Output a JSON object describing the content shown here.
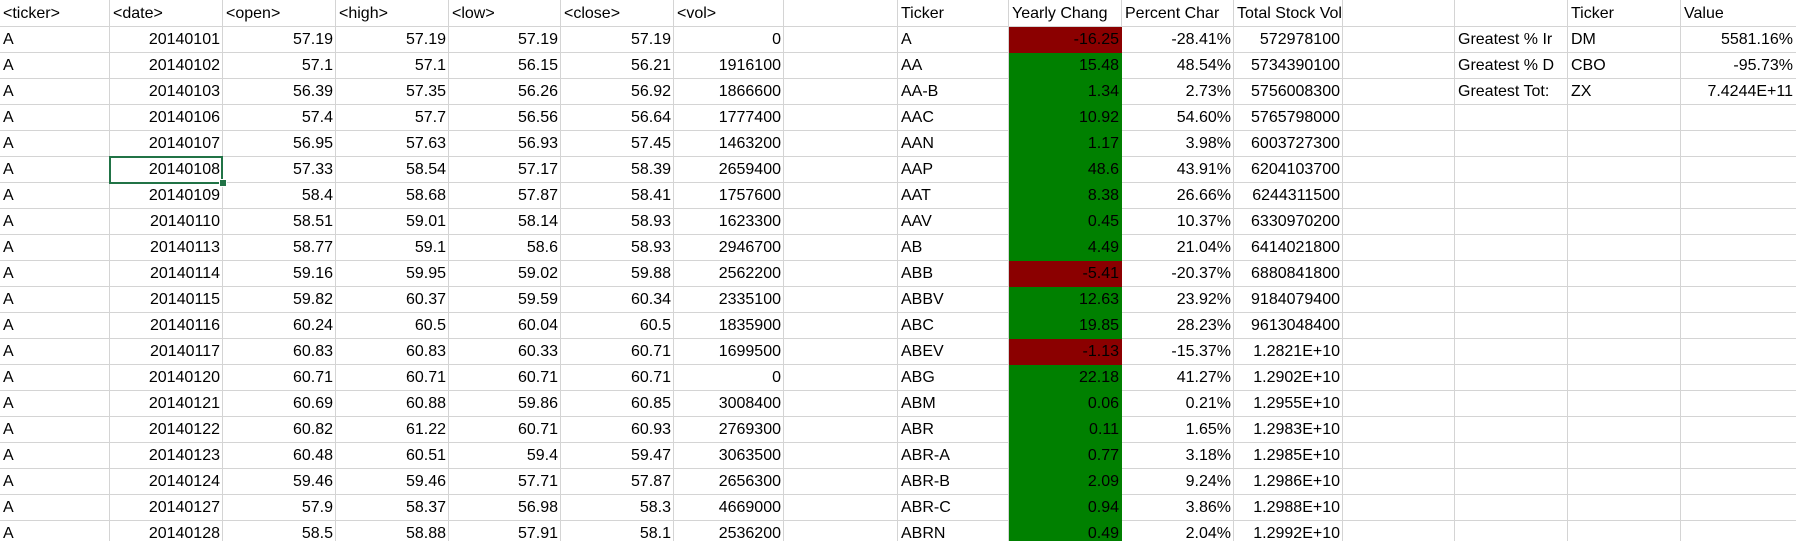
{
  "colors": {
    "positive_fill": "#008000",
    "negative_fill": "#8b0000",
    "selection_border": "#217346",
    "gridline": "#d4d4d4"
  },
  "headers": {
    "A": "<ticker>",
    "B": "<date>",
    "C": "<open>",
    "D": "<high>",
    "E": "<low>",
    "F": "<close>",
    "G": "<vol>",
    "I": "Ticker",
    "J": "Yearly Chang",
    "K": "Percent Char",
    "L": "Total Stock Volume",
    "O": "Ticker",
    "P": "Value"
  },
  "raw_rows": [
    [
      "A",
      "20140101",
      "57.19",
      "57.19",
      "57.19",
      "57.19",
      "0"
    ],
    [
      "A",
      "20140102",
      "57.1",
      "57.1",
      "56.15",
      "56.21",
      "1916100"
    ],
    [
      "A",
      "20140103",
      "56.39",
      "57.35",
      "56.26",
      "56.92",
      "1866600"
    ],
    [
      "A",
      "20140106",
      "57.4",
      "57.7",
      "56.56",
      "56.64",
      "1777400"
    ],
    [
      "A",
      "20140107",
      "56.95",
      "57.63",
      "56.93",
      "57.45",
      "1463200"
    ],
    [
      "A",
      "20140108",
      "57.33",
      "58.54",
      "57.17",
      "58.39",
      "2659400"
    ],
    [
      "A",
      "20140109",
      "58.4",
      "58.68",
      "57.87",
      "58.41",
      "1757600"
    ],
    [
      "A",
      "20140110",
      "58.51",
      "59.01",
      "58.14",
      "58.93",
      "1623300"
    ],
    [
      "A",
      "20140113",
      "58.77",
      "59.1",
      "58.6",
      "58.93",
      "2946700"
    ],
    [
      "A",
      "20140114",
      "59.16",
      "59.95",
      "59.02",
      "59.88",
      "2562200"
    ],
    [
      "A",
      "20140115",
      "59.82",
      "60.37",
      "59.59",
      "60.34",
      "2335100"
    ],
    [
      "A",
      "20140116",
      "60.24",
      "60.5",
      "60.04",
      "60.5",
      "1835900"
    ],
    [
      "A",
      "20140117",
      "60.83",
      "60.83",
      "60.33",
      "60.71",
      "1699500"
    ],
    [
      "A",
      "20140120",
      "60.71",
      "60.71",
      "60.71",
      "60.71",
      "0"
    ],
    [
      "A",
      "20140121",
      "60.69",
      "60.88",
      "59.86",
      "60.85",
      "3008400"
    ],
    [
      "A",
      "20140122",
      "60.82",
      "61.22",
      "60.71",
      "60.93",
      "2769300"
    ],
    [
      "A",
      "20140123",
      "60.48",
      "60.51",
      "59.4",
      "59.47",
      "3063500"
    ],
    [
      "A",
      "20140124",
      "59.46",
      "59.46",
      "57.71",
      "57.87",
      "2656300"
    ],
    [
      "A",
      "20140127",
      "57.9",
      "58.37",
      "56.98",
      "58.3",
      "4669000"
    ],
    [
      "A",
      "20140128",
      "58.5",
      "58.88",
      "57.91",
      "58.1",
      "2536200"
    ]
  ],
  "summary_rows": [
    {
      "ticker": "A",
      "change": "-16.25",
      "percent": "-28.41%",
      "volume": "572978100",
      "sign": "negative"
    },
    {
      "ticker": "AA",
      "change": "15.48",
      "percent": "48.54%",
      "volume": "5734390100",
      "sign": "positive"
    },
    {
      "ticker": "AA-B",
      "change": "1.34",
      "percent": "2.73%",
      "volume": "5756008300",
      "sign": "positive"
    },
    {
      "ticker": "AAC",
      "change": "10.92",
      "percent": "54.60%",
      "volume": "5765798000",
      "sign": "positive"
    },
    {
      "ticker": "AAN",
      "change": "1.17",
      "percent": "3.98%",
      "volume": "6003727300",
      "sign": "positive"
    },
    {
      "ticker": "AAP",
      "change": "48.6",
      "percent": "43.91%",
      "volume": "6204103700",
      "sign": "positive"
    },
    {
      "ticker": "AAT",
      "change": "8.38",
      "percent": "26.66%",
      "volume": "6244311500",
      "sign": "positive"
    },
    {
      "ticker": "AAV",
      "change": "0.45",
      "percent": "10.37%",
      "volume": "6330970200",
      "sign": "positive"
    },
    {
      "ticker": "AB",
      "change": "4.49",
      "percent": "21.04%",
      "volume": "6414021800",
      "sign": "positive"
    },
    {
      "ticker": "ABB",
      "change": "-5.41",
      "percent": "-20.37%",
      "volume": "6880841800",
      "sign": "negative"
    },
    {
      "ticker": "ABBV",
      "change": "12.63",
      "percent": "23.92%",
      "volume": "9184079400",
      "sign": "positive"
    },
    {
      "ticker": "ABC",
      "change": "19.85",
      "percent": "28.23%",
      "volume": "9613048400",
      "sign": "positive"
    },
    {
      "ticker": "ABEV",
      "change": "-1.13",
      "percent": "-15.37%",
      "volume": "1.2821E+10",
      "sign": "negative"
    },
    {
      "ticker": "ABG",
      "change": "22.18",
      "percent": "41.27%",
      "volume": "1.2902E+10",
      "sign": "positive"
    },
    {
      "ticker": "ABM",
      "change": "0.06",
      "percent": "0.21%",
      "volume": "1.2955E+10",
      "sign": "positive"
    },
    {
      "ticker": "ABR",
      "change": "0.11",
      "percent": "1.65%",
      "volume": "1.2983E+10",
      "sign": "positive"
    },
    {
      "ticker": "ABR-A",
      "change": "0.77",
      "percent": "3.18%",
      "volume": "1.2985E+10",
      "sign": "positive"
    },
    {
      "ticker": "ABR-B",
      "change": "2.09",
      "percent": "9.24%",
      "volume": "1.2986E+10",
      "sign": "positive"
    },
    {
      "ticker": "ABR-C",
      "change": "0.94",
      "percent": "3.86%",
      "volume": "1.2988E+10",
      "sign": "positive"
    },
    {
      "ticker": "ABRN",
      "change": "0.49",
      "percent": "2.04%",
      "volume": "1.2992E+10",
      "sign": "positive"
    }
  ],
  "greatest": [
    {
      "label": "Greatest % Ir",
      "ticker": "DM",
      "value": "5581.16%"
    },
    {
      "label": "Greatest % D",
      "ticker": "CBO",
      "value": "-95.73%"
    },
    {
      "label": "Greatest Tot:",
      "ticker": "ZX",
      "value": "7.4244E+11"
    }
  ],
  "selection": {
    "row": 6,
    "column": "B"
  }
}
